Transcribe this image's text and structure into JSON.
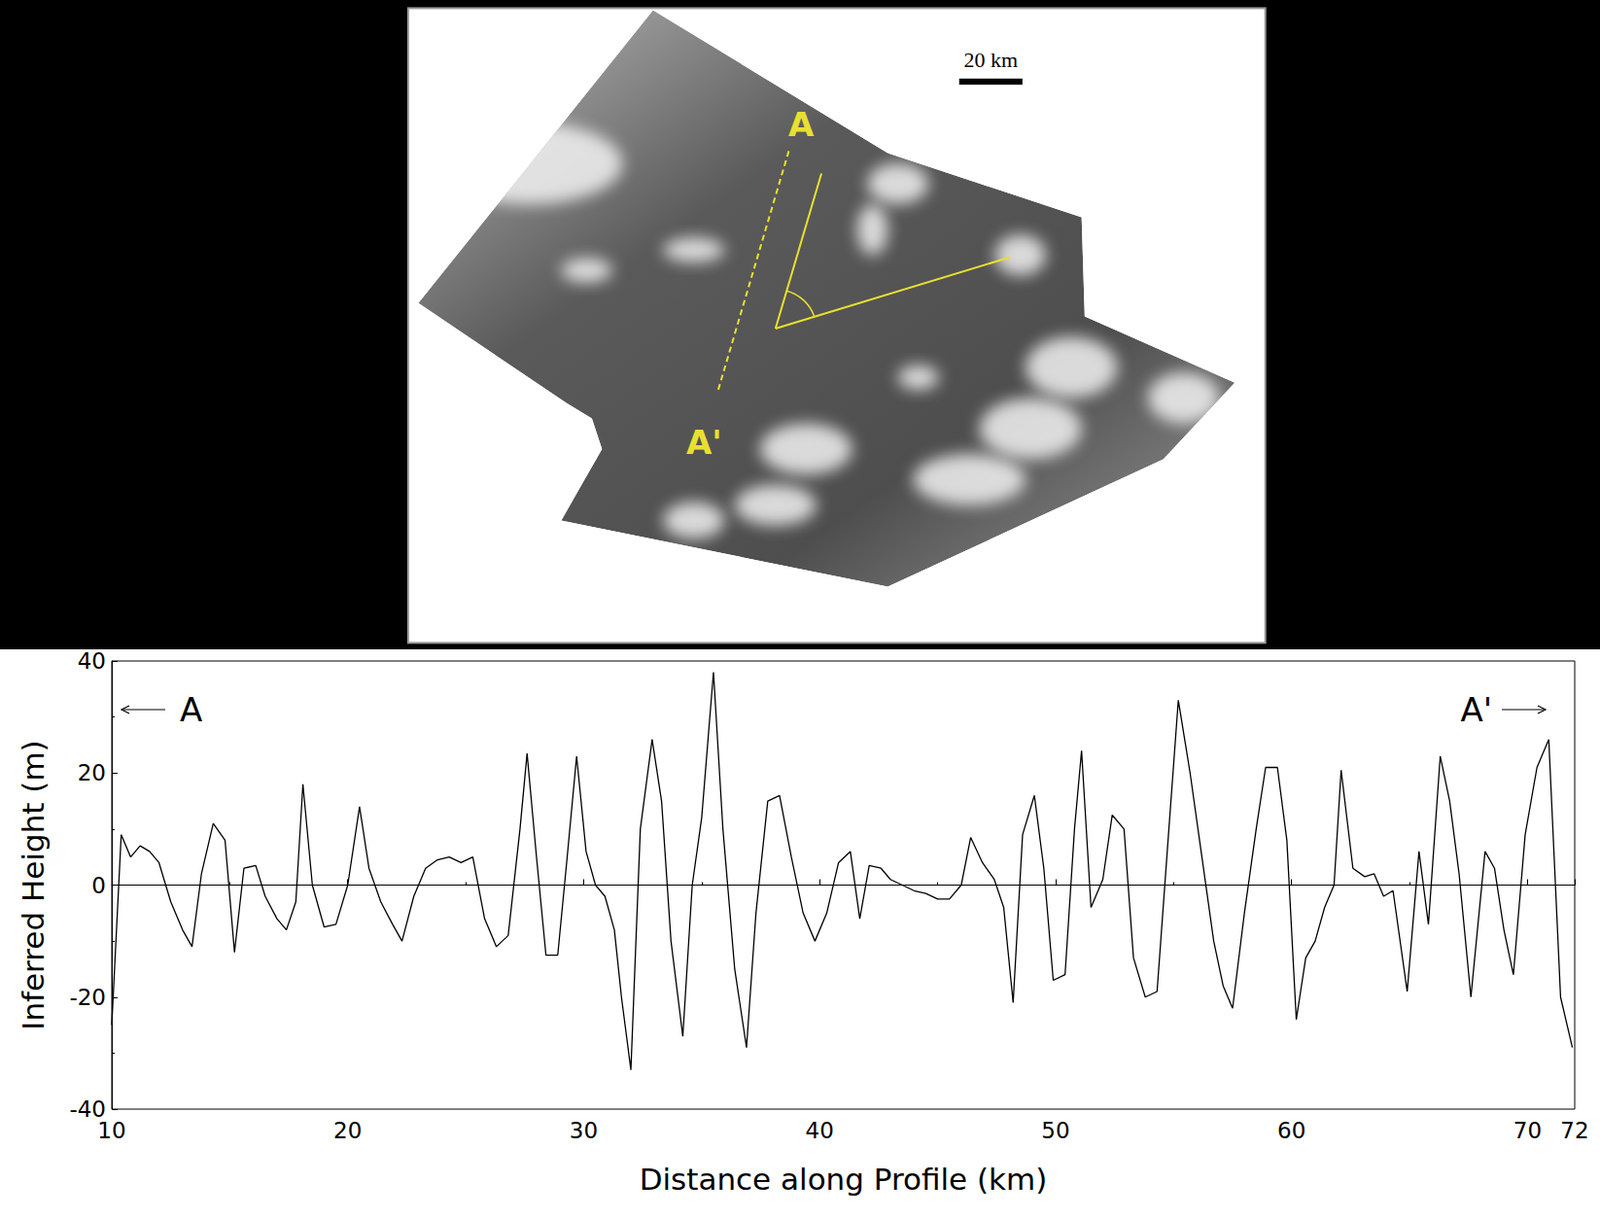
{
  "chart_data": {
    "type": "line",
    "x_label": "Distance along Profile (km)",
    "y_label": "Inferred Height (m)",
    "xlim": [
      10,
      72
    ],
    "xticks": [
      10,
      20,
      30,
      40,
      50,
      60,
      70
    ],
    "ylim": [
      -40,
      40
    ],
    "yticks": [
      -40,
      -20,
      0,
      20,
      40
    ],
    "zero_line": 0,
    "annotations": [
      "A",
      "A'"
    ],
    "grid": false,
    "color": "#000000",
    "line_style": "solid",
    "x": [
      10.0,
      10.4,
      10.8,
      11.2,
      11.6,
      12.0,
      12.5,
      13.0,
      13.4,
      13.8,
      14.3,
      14.8,
      15.2,
      15.6,
      16.1,
      16.5,
      17.0,
      17.4,
      17.8,
      18.1,
      18.5,
      19.0,
      19.5,
      20.0,
      20.5,
      20.9,
      21.4,
      21.9,
      22.3,
      22.8,
      23.3,
      23.8,
      24.3,
      24.8,
      25.3,
      25.8,
      26.3,
      26.8,
      27.3,
      27.6,
      28.0,
      28.4,
      28.9,
      29.3,
      29.7,
      30.1,
      30.5,
      30.9,
      31.3,
      31.6,
      32.0,
      32.4,
      32.9,
      33.3,
      33.7,
      34.2,
      34.6,
      35.0,
      35.5,
      35.9,
      36.4,
      36.9,
      37.3,
      37.8,
      38.3,
      38.8,
      39.3,
      39.8,
      40.3,
      40.8,
      41.3,
      41.7,
      42.1,
      42.6,
      43.0,
      43.5,
      44.0,
      44.5,
      45.0,
      45.5,
      46.0,
      46.4,
      46.9,
      47.4,
      47.8,
      48.2,
      48.6,
      49.1,
      49.5,
      49.9,
      50.4,
      50.8,
      51.1,
      51.5,
      52.0,
      52.4,
      52.9,
      53.3,
      53.8,
      54.3,
      54.8,
      55.2,
      55.7,
      56.2,
      56.7,
      57.1,
      57.5,
      58.0,
      58.5,
      58.9,
      59.4,
      59.8,
      60.2,
      60.6,
      61.0,
      61.4,
      61.8,
      62.1,
      62.6,
      63.1,
      63.5,
      63.9,
      64.3,
      64.9,
      65.4,
      65.8,
      66.3,
      66.7,
      67.1,
      67.6,
      68.2,
      68.6,
      69.0,
      69.4,
      69.9,
      70.4,
      70.9,
      71.4,
      71.9
    ],
    "values": [
      -25,
      9,
      5,
      7,
      6,
      4,
      -3,
      -8,
      -11,
      2,
      11,
      8,
      -12,
      3,
      3.5,
      -2,
      -6,
      -8,
      -3,
      18,
      0,
      -7.5,
      -7,
      0,
      14,
      3,
      -3,
      -7,
      -10,
      -2,
      3,
      4.5,
      5,
      4,
      5,
      -6,
      -11,
      -9,
      10,
      23.5,
      5,
      -12.5,
      -12.5,
      5,
      23,
      6,
      0,
      -2,
      -8,
      -20,
      -33,
      10,
      26,
      15,
      -10,
      -27,
      0,
      12,
      38,
      10,
      -15,
      -29,
      -5,
      15,
      16,
      5,
      -5,
      -10,
      -5,
      4,
      6,
      -6,
      3.5,
      3,
      1,
      0,
      -1,
      -1.5,
      -2.5,
      -2.5,
      0,
      8.5,
      4,
      1,
      -4,
      -21,
      9,
      16,
      3,
      -17,
      -16,
      10,
      24,
      -4,
      1,
      12.5,
      10,
      -13,
      -20,
      -19,
      10,
      33,
      20,
      5,
      -10,
      -18,
      -22,
      -5,
      10,
      21,
      21,
      8,
      -24,
      -13,
      -10,
      -4,
      0,
      20.5,
      3,
      1.5,
      2,
      -2,
      -1,
      -19,
      6,
      -7,
      23,
      15,
      2,
      -20,
      6,
      3,
      -8,
      -16,
      9,
      21,
      26,
      -20,
      -29
    ]
  },
  "map": {
    "scale_label": "20 km",
    "labels": [
      "A",
      "A'"
    ]
  }
}
